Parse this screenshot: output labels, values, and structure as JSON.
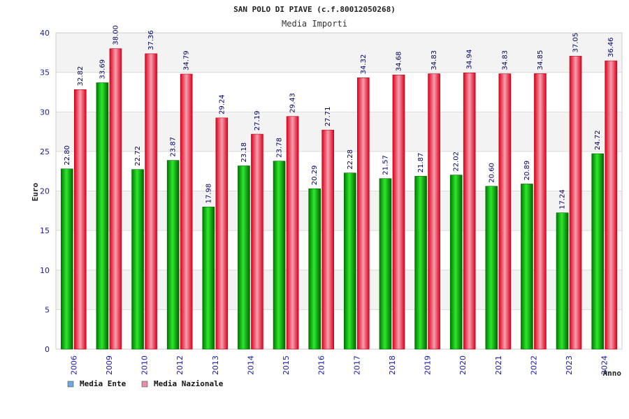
{
  "chart_data": {
    "type": "bar",
    "title": "SAN POLO DI PIAVE (c.f.80012050268)",
    "subtitle": "Media Importi",
    "ylabel": "Euro",
    "xlabel": "Anno",
    "ylim": [
      0,
      40
    ],
    "yticks": [
      "0",
      "5",
      "10",
      "15",
      "20",
      "25",
      "30",
      "35",
      "40"
    ],
    "categories": [
      "2006",
      "2009",
      "2010",
      "2012",
      "2013",
      "2014",
      "2015",
      "2016",
      "2017",
      "2018",
      "2019",
      "2020",
      "2021",
      "2022",
      "2023",
      "2024"
    ],
    "series": [
      {
        "name": "Media Ente",
        "legend_color": "#6fa8dc",
        "values": [
          22.8,
          33.69,
          22.72,
          23.87,
          17.98,
          23.18,
          23.78,
          20.29,
          22.28,
          21.57,
          21.87,
          22.02,
          20.6,
          20.89,
          17.24,
          24.72
        ],
        "labels": [
          "22.80",
          "33.69",
          "22.72",
          "23.87",
          "17.98",
          "23.18",
          "23.78",
          "20.29",
          "22.28",
          "21.57",
          "21.87",
          "22.02",
          "20.60",
          "20.89",
          "17.24",
          "24.72"
        ]
      },
      {
        "name": "Media Nazionale",
        "legend_color": "#e68fac",
        "values": [
          32.82,
          38.0,
          37.36,
          34.79,
          29.24,
          27.19,
          29.43,
          27.71,
          34.32,
          34.68,
          34.83,
          34.94,
          34.83,
          34.85,
          37.05,
          36.46
        ],
        "labels": [
          "32.82",
          "38.00",
          "37.36",
          "34.79",
          "29.24",
          "27.19",
          "29.43",
          "27.71",
          "34.32",
          "34.68",
          "34.83",
          "34.94",
          "34.83",
          "34.85",
          "37.05",
          "36.46"
        ]
      }
    ],
    "grid": true,
    "legend_position": "bottom-left"
  }
}
